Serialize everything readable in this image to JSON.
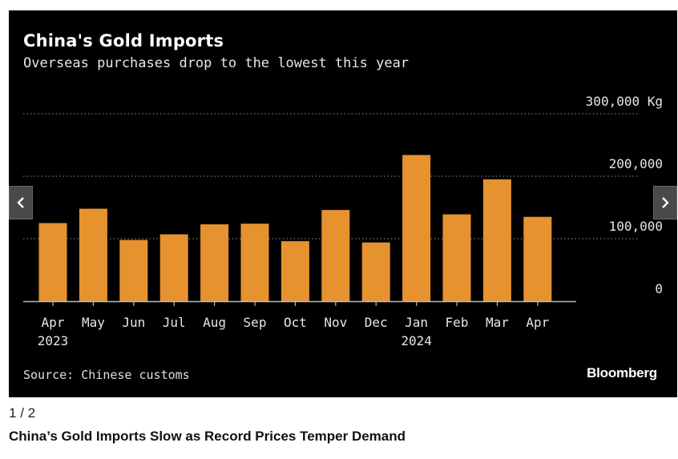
{
  "gallery": {
    "counter_current": "1",
    "counter_sep": " / ",
    "counter_total": "2",
    "caption": "China’s Gold Imports Slow as Record Prices Temper Demand",
    "prev_icon": "chevron-left-icon",
    "next_icon": "chevron-right-icon"
  },
  "chart": {
    "source": "Source: Chinese customs",
    "logo": "Bloomberg"
  },
  "colors": {
    "bar": "#E6922E",
    "background": "#000000",
    "text": "#FFFFFF",
    "grid": "#777777"
  },
  "chart_data": {
    "type": "bar",
    "title": "China's Gold Imports",
    "subtitle": "Overseas purchases drop to the lowest this year",
    "categories": [
      "Apr",
      "May",
      "Jun",
      "Jul",
      "Aug",
      "Sep",
      "Oct",
      "Nov",
      "Dec",
      "Jan",
      "Feb",
      "Mar",
      "Apr"
    ],
    "year_labels": [
      "2023",
      "",
      "",
      "",
      "",
      "",
      "",
      "",
      "",
      "2024",
      "",
      "",
      ""
    ],
    "values": [
      125000,
      148000,
      98000,
      107000,
      123000,
      124000,
      96000,
      146000,
      94000,
      234000,
      139000,
      195000,
      135000
    ],
    "ylim": [
      0,
      300000
    ],
    "yticks": [
      0,
      100000,
      200000,
      300000
    ],
    "ytick_labels": [
      "0",
      "100,000",
      "200,000",
      "300,000 Kg"
    ],
    "ylabel": "",
    "xlabel": "",
    "grid": true,
    "axis_side": "right"
  }
}
